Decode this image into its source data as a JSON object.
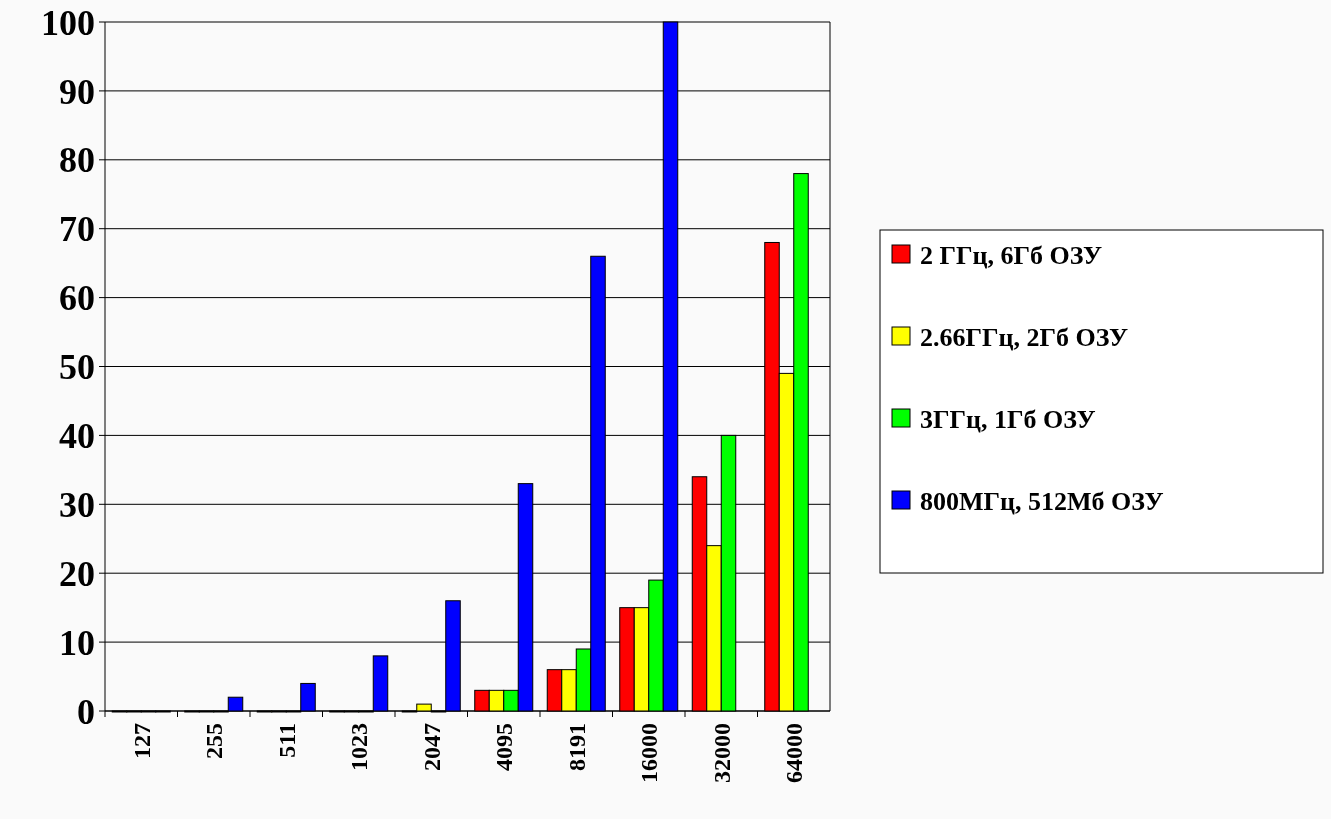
{
  "chart_data": {
    "type": "bar",
    "categories": [
      "127",
      "255",
      "511",
      "1023",
      "2047",
      "4095",
      "8191",
      "16000",
      "32000",
      "64000"
    ],
    "series": [
      {
        "name": "2 ГГц, 6Гб ОЗУ",
        "color": "#ff0000",
        "values": [
          0,
          0,
          0,
          0,
          0,
          3,
          6,
          15,
          34,
          68
        ]
      },
      {
        "name": "2.66ГГц, 2Гб ОЗУ",
        "color": "#ffff00",
        "values": [
          0,
          0,
          0,
          0,
          1,
          3,
          6,
          15,
          24,
          49
        ]
      },
      {
        "name": "3ГГц, 1Гб ОЗУ",
        "color": "#00ff00",
        "values": [
          0,
          0,
          0,
          0,
          0,
          3,
          9,
          19,
          40,
          78
        ]
      },
      {
        "name": "800МГц, 512Мб ОЗУ",
        "color": "#0000ff",
        "values": [
          0,
          2,
          4,
          8,
          16,
          33,
          66,
          100,
          null,
          null
        ]
      }
    ],
    "ylim": [
      0,
      100
    ],
    "yticks": [
      0,
      10,
      20,
      30,
      40,
      50,
      60,
      70,
      80,
      90,
      100
    ],
    "grid": "y",
    "legend": "right"
  }
}
